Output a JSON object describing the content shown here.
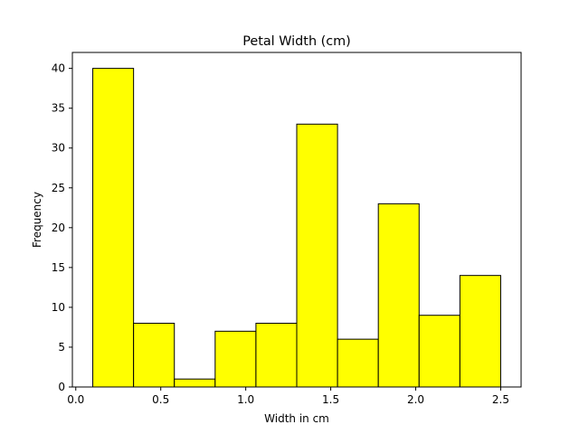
{
  "chart_data": {
    "type": "bar",
    "title": "Petal Width (cm)",
    "xlabel": "Width in cm",
    "ylabel": "Frequency",
    "bins": [
      {
        "start": 0.1,
        "end": 0.34,
        "value": 40
      },
      {
        "start": 0.34,
        "end": 0.58,
        "value": 8
      },
      {
        "start": 0.58,
        "end": 0.82,
        "value": 1
      },
      {
        "start": 0.82,
        "end": 1.06,
        "value": 7
      },
      {
        "start": 1.06,
        "end": 1.3,
        "value": 8
      },
      {
        "start": 1.3,
        "end": 1.54,
        "value": 33
      },
      {
        "start": 1.54,
        "end": 1.78,
        "value": 6
      },
      {
        "start": 1.78,
        "end": 2.02,
        "value": 23
      },
      {
        "start": 2.02,
        "end": 2.26,
        "value": 9
      },
      {
        "start": 2.26,
        "end": 2.5,
        "value": 14
      }
    ],
    "xlim": [
      -0.02,
      2.62
    ],
    "ylim": [
      0,
      42
    ],
    "xticks": [
      0.0,
      0.5,
      1.0,
      1.5,
      2.0,
      2.5
    ],
    "xtick_labels": [
      "0.0",
      "0.5",
      "1.0",
      "1.5",
      "2.0",
      "2.5"
    ],
    "yticks": [
      0,
      5,
      10,
      15,
      20,
      25,
      30,
      35,
      40
    ],
    "ytick_labels": [
      "0",
      "5",
      "10",
      "15",
      "20",
      "25",
      "30",
      "35",
      "40"
    ],
    "grid": false,
    "bar_color": "#ffff00",
    "edge_color": "#000000"
  }
}
